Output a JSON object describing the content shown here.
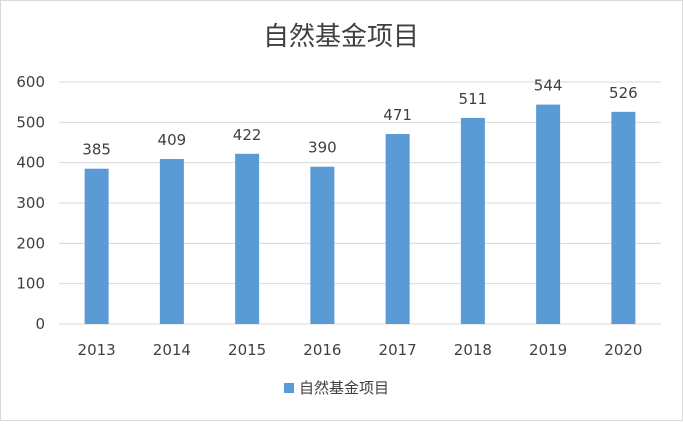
{
  "chart_data": {
    "type": "bar",
    "title": "自然基金项目",
    "categories": [
      "2013",
      "2014",
      "2015",
      "2016",
      "2017",
      "2018",
      "2019",
      "2020"
    ],
    "series": [
      {
        "name": "自然基金项目",
        "values": [
          385,
          409,
          422,
          390,
          471,
          511,
          544,
          526
        ]
      }
    ],
    "xlabel": "",
    "ylabel": "",
    "ylim": [
      0,
      600
    ],
    "yticks": [
      0,
      100,
      200,
      300,
      400,
      500,
      600
    ],
    "grid": true,
    "legend_position": "bottom",
    "data_labels": true,
    "colors": {
      "bar": "#5b9bd5",
      "grid": "#d9d9d9",
      "text": "#404040"
    }
  }
}
